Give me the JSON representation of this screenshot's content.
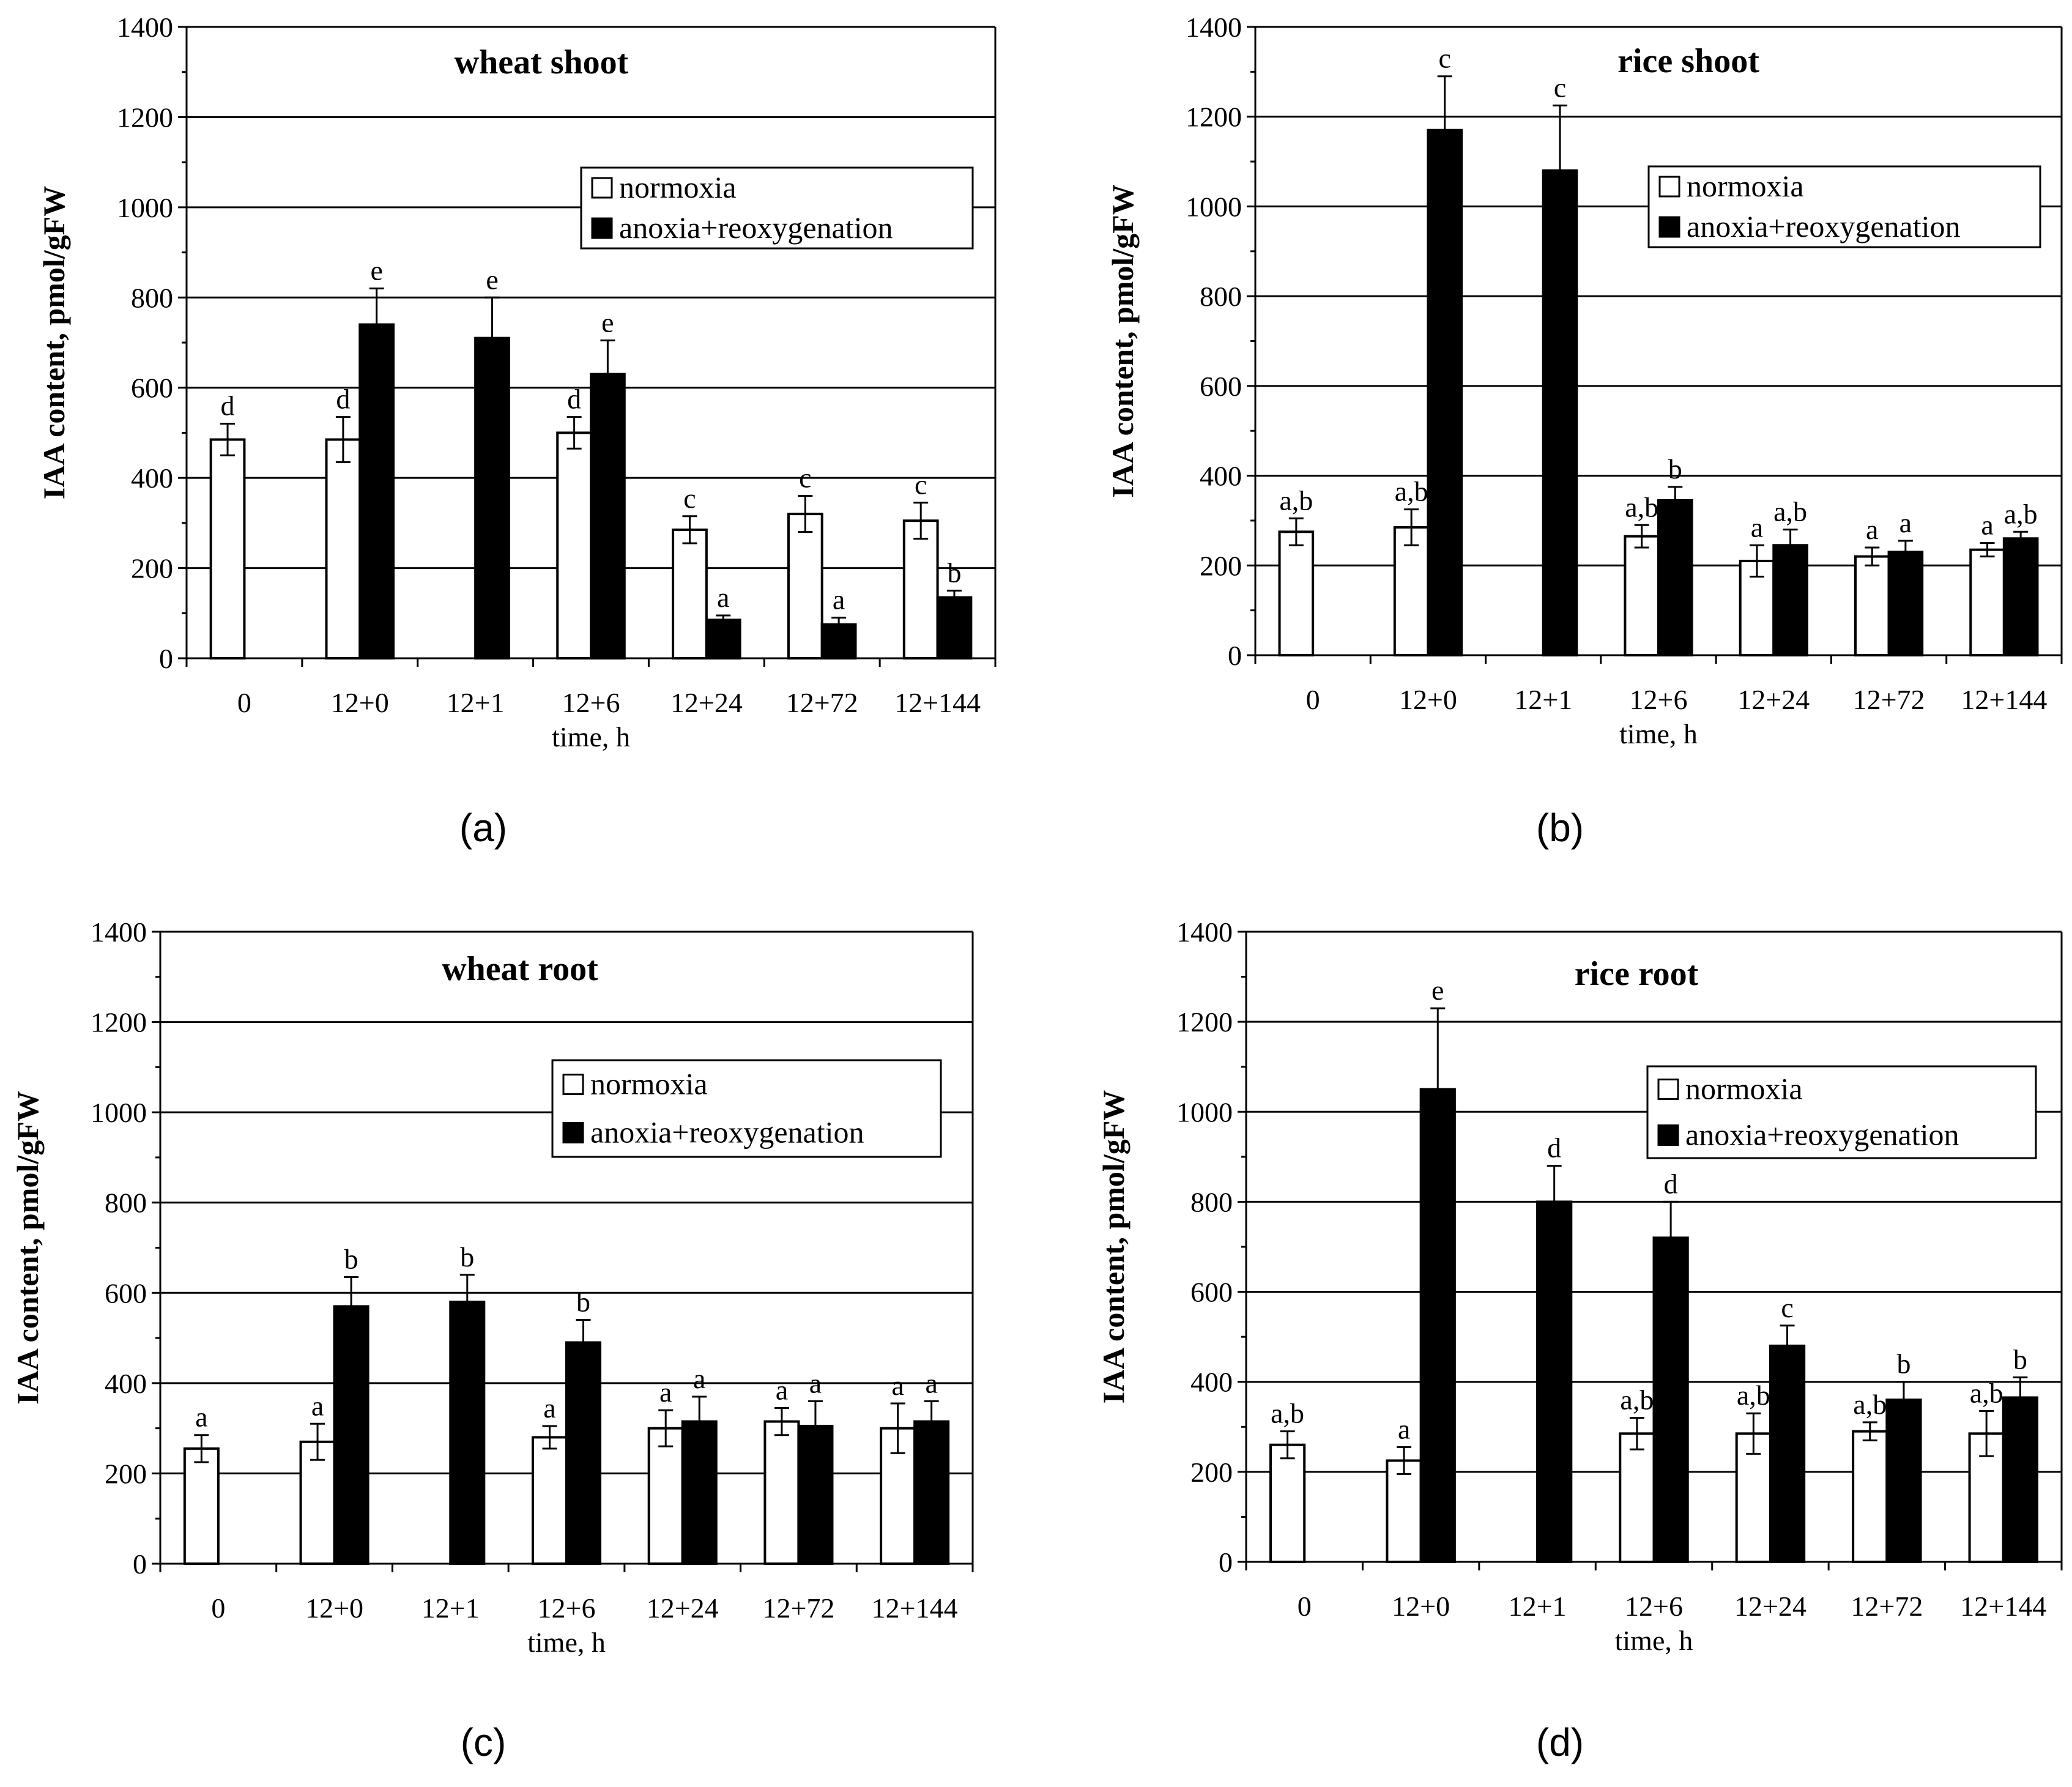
{
  "colors": {
    "normoxia_fill": "#ffffff",
    "anoxia_fill": "#000000",
    "axis": "#000000"
  },
  "chart_data": [
    {
      "type": "bar",
      "panel_label": "(a)",
      "title": "wheat shoot",
      "xlabel": "time, h",
      "ylabel": "IAA content, pmol/gFW",
      "ylim": [
        0,
        1400
      ],
      "yticks": [
        "0",
        "200",
        "400",
        "600",
        "800",
        "1000",
        "1200",
        "1400"
      ],
      "categories": [
        "0",
        "12+0",
        "12+1",
        "12+6",
        "12+24",
        "12+72",
        "12+144"
      ],
      "legend": [
        "normoxia",
        "anoxia+reoxygenation"
      ],
      "series": [
        {
          "name": "normoxia",
          "values": [
            485,
            485,
            null,
            500,
            285,
            320,
            305
          ],
          "errors": [
            35,
            50,
            null,
            35,
            30,
            40,
            40
          ],
          "letters": [
            "d",
            "d",
            null,
            "d",
            "c",
            "c",
            "c"
          ]
        },
        {
          "name": "anoxia+reoxygenation",
          "values": [
            null,
            740,
            710,
            630,
            85,
            75,
            135
          ],
          "errors": [
            null,
            80,
            90,
            75,
            10,
            15,
            15
          ],
          "letters": [
            null,
            "e",
            "e",
            "e",
            "a",
            "a",
            "b"
          ]
        }
      ]
    },
    {
      "type": "bar",
      "panel_label": "(b)",
      "title": "rice shoot",
      "xlabel": "time, h",
      "ylabel": "IAA content, pmol/gFW",
      "ylim": [
        0,
        1400
      ],
      "yticks": [
        "0",
        "200",
        "400",
        "600",
        "800",
        "1000",
        "1200",
        "1400"
      ],
      "categories": [
        "0",
        "12+0",
        "12+1",
        "12+6",
        "12+24",
        "12+72",
        "12+144"
      ],
      "legend": [
        "normoxia",
        "anoxia+reoxygenation"
      ],
      "series": [
        {
          "name": "normoxia",
          "values": [
            275,
            285,
            null,
            265,
            210,
            220,
            235
          ],
          "errors": [
            30,
            40,
            null,
            25,
            35,
            20,
            15
          ],
          "letters": [
            "a,b",
            "a,b",
            null,
            "a,b",
            "a",
            "a",
            "a"
          ]
        },
        {
          "name": "anoxia+reoxygenation",
          "values": [
            null,
            1170,
            1080,
            345,
            245,
            230,
            260
          ],
          "errors": [
            null,
            120,
            145,
            30,
            35,
            25,
            15
          ],
          "letters": [
            null,
            "c",
            "c",
            "b",
            "a,b",
            "a",
            "a,b"
          ]
        }
      ]
    },
    {
      "type": "bar",
      "panel_label": "(c)",
      "title": "wheat root",
      "xlabel": "time, h",
      "ylabel": "IAA content, pmol/gFW",
      "ylim": [
        0,
        1400
      ],
      "yticks": [
        "0",
        "200",
        "400",
        "600",
        "800",
        "1000",
        "1200",
        "1400"
      ],
      "categories": [
        "0",
        "12+0",
        "12+1",
        "12+6",
        "12+24",
        "12+72",
        "12+144"
      ],
      "legend": [
        "normoxia",
        "anoxia+reoxygenation"
      ],
      "series": [
        {
          "name": "normoxia",
          "values": [
            255,
            270,
            null,
            280,
            300,
            315,
            300
          ],
          "errors": [
            30,
            40,
            null,
            25,
            40,
            30,
            55
          ],
          "letters": [
            "a",
            "a",
            null,
            "a",
            "a",
            "a",
            "a"
          ]
        },
        {
          "name": "anoxia+reoxygenation",
          "values": [
            null,
            570,
            580,
            490,
            315,
            305,
            315
          ],
          "errors": [
            null,
            65,
            60,
            50,
            55,
            55,
            45
          ],
          "letters": [
            null,
            "b",
            "b",
            "b",
            "a",
            "a",
            "a"
          ]
        }
      ]
    },
    {
      "type": "bar",
      "panel_label": "(d)",
      "title": "rice root",
      "xlabel": "time, h",
      "ylabel": "IAA content, pmol/gFW",
      "ylim": [
        0,
        1400
      ],
      "yticks": [
        "0",
        "200",
        "400",
        "600",
        "800",
        "1000",
        "1200",
        "1400"
      ],
      "categories": [
        "0",
        "12+0",
        "12+1",
        "12+6",
        "12+24",
        "12+72",
        "12+144"
      ],
      "legend": [
        "normoxia",
        "anoxia+reoxygenation"
      ],
      "series": [
        {
          "name": "normoxia",
          "values": [
            260,
            225,
            null,
            285,
            285,
            290,
            285
          ],
          "errors": [
            30,
            30,
            null,
            35,
            45,
            20,
            50
          ],
          "letters": [
            "a,b",
            "a",
            null,
            "a,b",
            "a,b",
            "a,b",
            "a,b"
          ]
        },
        {
          "name": "anoxia+reoxygenation",
          "values": [
            null,
            1050,
            800,
            720,
            480,
            360,
            365
          ],
          "errors": [
            null,
            180,
            80,
            80,
            45,
            40,
            45
          ],
          "letters": [
            null,
            "e",
            "d",
            "d",
            "c",
            "b",
            "b"
          ]
        }
      ]
    }
  ]
}
